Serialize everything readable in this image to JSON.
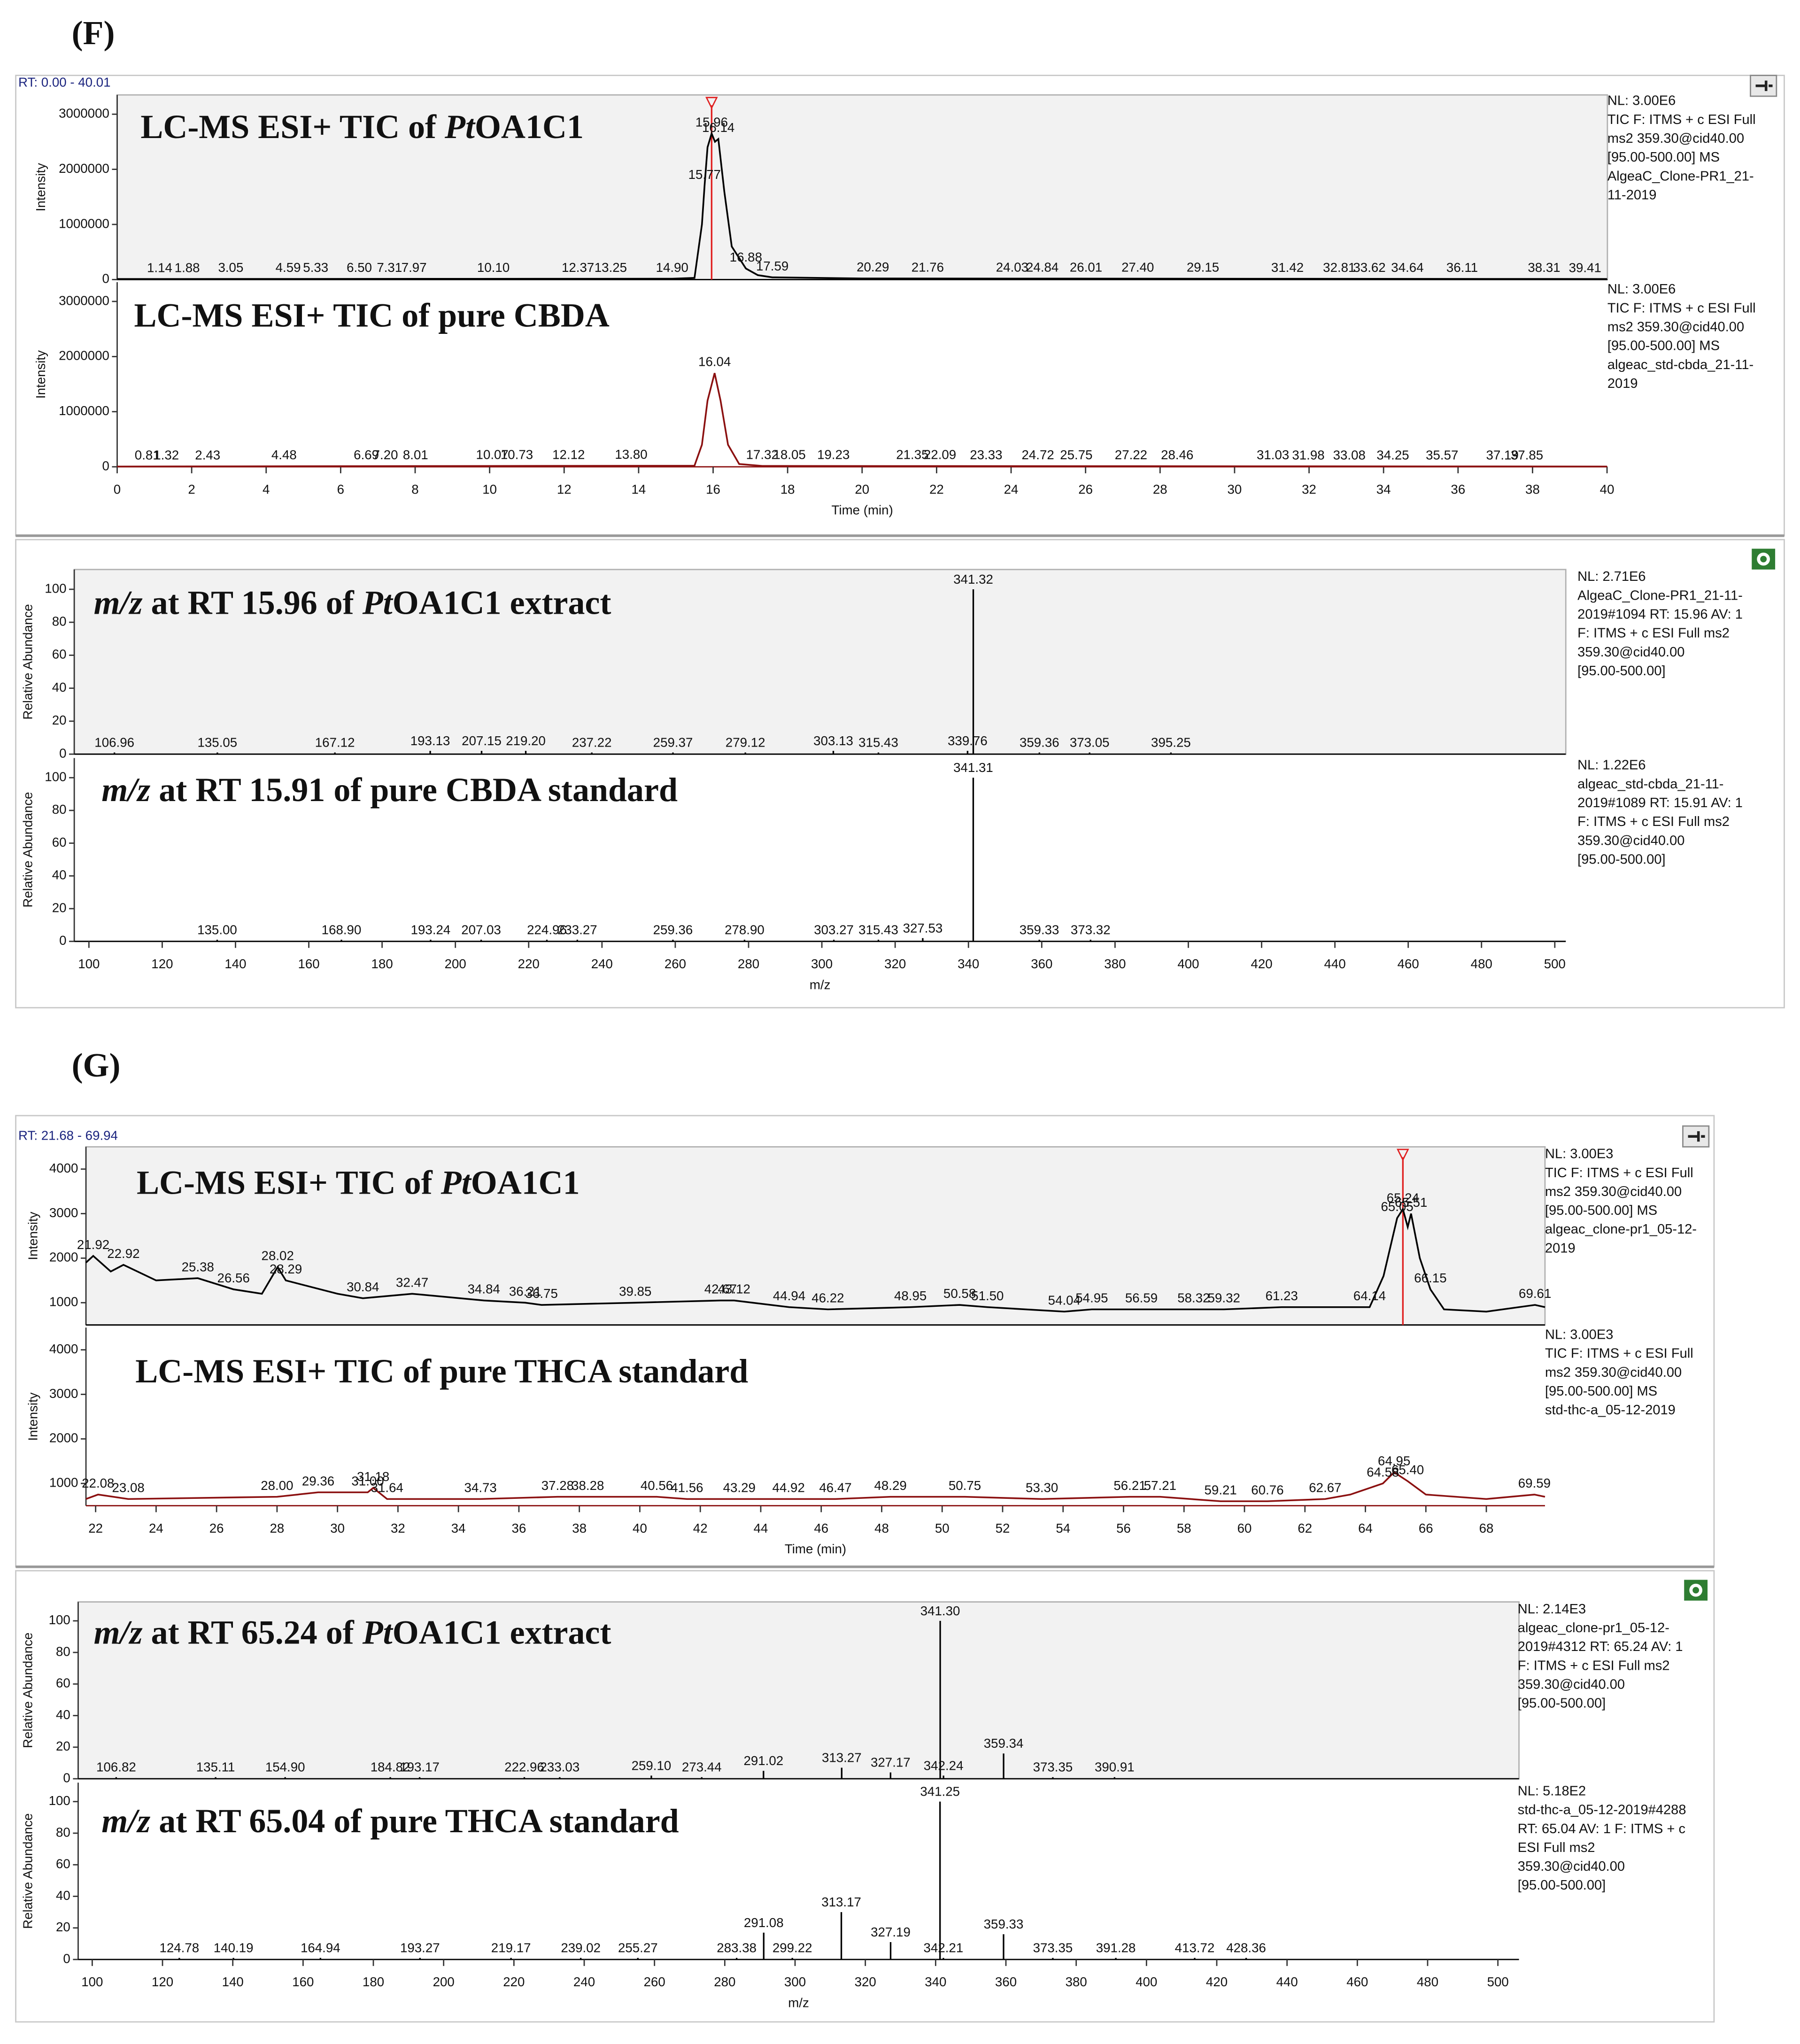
{
  "panel_labels": [
    "(F)",
    "(G)"
  ],
  "chart_data": [
    {
      "type": "line",
      "title_parts": [
        {
          "text": "LC-MS ESI+ TIC of "
        },
        {
          "text": "Pt",
          "italic": true
        },
        {
          "text": "OA1C1"
        }
      ],
      "rt_range": "RT: 0.00 - 40.01",
      "ylabel": "Intensity",
      "color": "#000000",
      "panel_fill": "#f2f2f2",
      "rt_marker": 15.96,
      "xlim": [
        0,
        40.01
      ],
      "ylim": [
        0,
        3350000
      ],
      "yticks": [
        0,
        1000000,
        2000000,
        3000000
      ],
      "x": [
        0,
        14.9,
        15.5,
        15.7,
        15.77,
        15.85,
        15.96,
        16.05,
        16.14,
        16.3,
        16.5,
        16.88,
        17.2,
        17.59,
        20,
        40
      ],
      "values": [
        10000,
        15000,
        30000,
        1000000,
        1700000,
        2400000,
        2650000,
        2500000,
        2550000,
        1600000,
        600000,
        200000,
        80000,
        40000,
        20000,
        10000
      ],
      "peaks": [
        1.14,
        1.88,
        3.05,
        4.59,
        5.33,
        {
          "value": 6.5,
          "label": "6.50"
        },
        7.31,
        7.97,
        {
          "value": 10.1,
          "label": "10.10"
        },
        12.37,
        13.25,
        {
          "value": 14.9,
          "label": "14.90"
        },
        15.77,
        15.96,
        16.14,
        16.88,
        17.59,
        20.29,
        21.76,
        24.03,
        24.84,
        26.01,
        {
          "value": 27.4,
          "label": "27.40"
        },
        29.15,
        31.42,
        32.81,
        33.62,
        34.64,
        36.11,
        38.31,
        39.41
      ],
      "info_color": "#000000",
      "info": [
        "NL: 3.00E6",
        "TIC F: ITMS + c ESI Full",
        "ms2 359.30@cid40.00",
        "[95.00-500.00] MS",
        "AlgeaC_Clone-PR1_21-",
        "11-2019"
      ]
    },
    {
      "type": "line",
      "title_parts": [
        {
          "text": "LC-MS ESI+ TIC of pure CBDA"
        }
      ],
      "ylabel": "Intensity",
      "xlabel": "Time (min)",
      "color": "#8b1010",
      "panel_fill": "#ffffff",
      "xlim": [
        0,
        40.01
      ],
      "ylim": [
        0,
        3350000
      ],
      "yticks": [
        0,
        1000000,
        2000000,
        3000000
      ],
      "xticks": [
        0,
        2,
        4,
        6,
        8,
        10,
        12,
        14,
        16,
        18,
        20,
        22,
        24,
        26,
        28,
        30,
        32,
        34,
        36,
        38,
        40
      ],
      "x": [
        0,
        15.5,
        15.7,
        15.85,
        16.04,
        16.2,
        16.4,
        16.7,
        17.32,
        40
      ],
      "values": [
        5000,
        20000,
        400000,
        1200000,
        1700000,
        1200000,
        400000,
        50000,
        15000,
        5000
      ],
      "peaks": [
        0.81,
        1.32,
        2.43,
        4.48,
        6.69,
        {
          "value": 7.2,
          "label": "7.20"
        },
        8.01,
        10.07,
        10.73,
        12.12,
        {
          "value": 13.8,
          "label": "13.80"
        },
        16.04,
        17.32,
        18.05,
        19.23,
        21.35,
        22.09,
        23.33,
        24.72,
        25.75,
        27.22,
        28.46,
        31.03,
        31.98,
        33.08,
        34.25,
        35.57,
        37.19,
        37.85
      ],
      "info_color": "#8b1010",
      "info": [
        "NL: 3.00E6",
        "TIC F: ITMS + c ESI Full",
        "ms2 359.30@cid40.00",
        "[95.00-500.00] MS",
        "algeac_std-cbda_21-11-",
        "2019"
      ]
    },
    {
      "type": "stick",
      "title_parts": [
        {
          "text": "m/z",
          "italic": true
        },
        {
          "text": " at RT 15.96 of "
        },
        {
          "text": "Pt",
          "italic": true
        },
        {
          "text": "OA1C1 extract"
        }
      ],
      "ylabel": "Relative Abundance",
      "color": "#000000",
      "panel_fill": "#f2f2f2",
      "xlim": [
        96,
        503
      ],
      "ylim": [
        0,
        112
      ],
      "yticks": [
        0,
        20,
        40,
        60,
        80,
        100
      ],
      "x": [
        106.96,
        135.05,
        167.12,
        193.13,
        207.15,
        {
          "value": 219.2,
          "label": "219.20"
        },
        237.22,
        259.37,
        279.12,
        303.13,
        315.43,
        339.76,
        341.32,
        359.36,
        373.05,
        395.25
      ],
      "values": [
        1,
        1,
        1,
        2,
        2,
        2,
        1,
        1,
        1,
        2,
        1,
        2,
        100,
        1,
        1,
        1
      ],
      "info_color": "#000000",
      "info": [
        "NL: 2.71E6",
        "AlgeaC_Clone-PR1_21-11-",
        "2019#1094  RT: 15.96  AV: 1",
        "F: ITMS + c ESI Full ms2",
        "359.30@cid40.00",
        "[95.00-500.00]"
      ]
    },
    {
      "type": "stick",
      "title_parts": [
        {
          "text": "m/z",
          "italic": true
        },
        {
          "text": " at RT 15.91 of pure CBDA standard"
        }
      ],
      "ylabel": "Relative Abundance",
      "xlabel": "m/z",
      "color": "#000000",
      "panel_fill": "#ffffff",
      "xlim": [
        96,
        503
      ],
      "ylim": [
        0,
        112
      ],
      "yticks": [
        0,
        20,
        40,
        60,
        80,
        100
      ],
      "xticks": [
        100,
        120,
        140,
        160,
        180,
        200,
        220,
        240,
        260,
        280,
        300,
        320,
        340,
        360,
        380,
        400,
        420,
        440,
        460,
        480,
        500
      ],
      "x": [
        {
          "value": 135,
          "label": "135.00"
        },
        {
          "value": 168.9,
          "label": "168.90"
        },
        193.24,
        207.03,
        224.96,
        233.27,
        259.36,
        {
          "value": 278.9,
          "label": "278.90"
        },
        303.27,
        315.43,
        327.53,
        341.31,
        359.33,
        373.32
      ],
      "values": [
        1,
        1,
        1,
        1,
        1,
        1,
        1,
        1,
        1,
        1,
        2,
        100,
        1,
        1
      ],
      "info_color": "#000000",
      "info": [
        "NL: 1.22E6",
        "algeac_std-cbda_21-11-",
        "2019#1089  RT: 15.91  AV: 1",
        "F: ITMS + c ESI Full ms2",
        "359.30@cid40.00",
        "[95.00-500.00]"
      ]
    },
    {
      "type": "line",
      "title_parts": [
        {
          "text": "LC-MS ESI+ TIC of "
        },
        {
          "text": "Pt",
          "italic": true
        },
        {
          "text": "OA1C1"
        }
      ],
      "rt_range": "RT: 21.68 - 69.94",
      "ylabel": "Intensity",
      "color": "#000000",
      "panel_fill": "#f2f2f2",
      "rt_marker": 65.24,
      "xlim": [
        21.68,
        69.94
      ],
      "ylim": [
        500,
        4500
      ],
      "yticks": [
        1000,
        2000,
        3000,
        4000
      ],
      "x": [
        21.68,
        21.92,
        22.5,
        22.92,
        24,
        25.38,
        26.56,
        27.5,
        28.02,
        28.29,
        30,
        30.84,
        32.47,
        34.84,
        36.21,
        36.75,
        39.85,
        42.67,
        43.12,
        44.94,
        46.22,
        48.95,
        50.58,
        51.5,
        54.04,
        54.95,
        56.59,
        58.32,
        59.32,
        61.23,
        64.14,
        64.6,
        65.05,
        65.24,
        65.4,
        65.51,
        65.8,
        66.15,
        66.6,
        68,
        69.61,
        69.94
      ],
      "values": [
        1900,
        2050,
        1700,
        1850,
        1500,
        1550,
        1300,
        1200,
        1800,
        1500,
        1200,
        1100,
        1200,
        1050,
        1000,
        950,
        1000,
        1050,
        1050,
        900,
        850,
        900,
        950,
        900,
        800,
        850,
        850,
        850,
        850,
        900,
        900,
        1600,
        2900,
        3100,
        2700,
        3000,
        2000,
        1300,
        850,
        800,
        950,
        900
      ],
      "peaks": [
        21.92,
        22.92,
        25.38,
        26.56,
        28.02,
        28.29,
        30.84,
        32.47,
        34.84,
        36.21,
        36.75,
        39.85,
        42.67,
        43.12,
        44.94,
        46.22,
        48.95,
        50.58,
        {
          "value": 51.5,
          "label": "51.50"
        },
        54.04,
        54.95,
        56.59,
        58.32,
        59.32,
        61.23,
        64.14,
        65.05,
        65.24,
        65.51,
        66.15,
        69.61
      ],
      "info_color": "#000000",
      "info": [
        "NL: 3.00E3",
        "TIC F: ITMS + c ESI Full",
        "ms2 359.30@cid40.00",
        "[95.00-500.00] MS",
        "algeac_clone-pr1_05-12-",
        "2019"
      ]
    },
    {
      "type": "line",
      "title_parts": [
        {
          "text": "LC-MS ESI+ TIC of pure THCA standard"
        }
      ],
      "ylabel": "Intensity",
      "xlabel": "Time (min)",
      "color": "#8b1010",
      "panel_fill": "#ffffff",
      "xlim": [
        21.68,
        69.94
      ],
      "ylim": [
        500,
        4500
      ],
      "yticks": [
        1000,
        2000,
        3000,
        4000
      ],
      "xticks": [
        22,
        24,
        26,
        28,
        30,
        32,
        34,
        36,
        38,
        40,
        42,
        44,
        46,
        48,
        50,
        52,
        54,
        56,
        58,
        60,
        62,
        64,
        66,
        68
      ],
      "x": [
        21.68,
        22.08,
        23.08,
        28,
        29.36,
        31,
        31.18,
        31.64,
        34.73,
        37.28,
        38.28,
        40.56,
        41.56,
        43.29,
        44.92,
        46.47,
        48.29,
        50.75,
        53.3,
        56.21,
        57.21,
        59.21,
        60.76,
        62.67,
        63.5,
        64.58,
        64.95,
        65.4,
        66,
        68,
        69.59,
        69.94
      ],
      "values": [
        650,
        750,
        650,
        700,
        800,
        800,
        900,
        650,
        650,
        700,
        700,
        700,
        650,
        650,
        650,
        650,
        700,
        700,
        650,
        700,
        700,
        600,
        600,
        650,
        750,
        1000,
        1250,
        1050,
        750,
        650,
        750,
        700
      ],
      "peaks": [
        22.08,
        23.08,
        {
          "value": 28,
          "label": "28.00"
        },
        29.36,
        {
          "value": 31,
          "label": "31.00"
        },
        31.18,
        31.64,
        34.73,
        37.28,
        38.28,
        40.56,
        41.56,
        43.29,
        44.92,
        46.47,
        48.29,
        50.75,
        {
          "value": 53.3,
          "label": "53.30"
        },
        56.21,
        57.21,
        59.21,
        60.76,
        62.67,
        64.58,
        64.95,
        {
          "value": 65.4,
          "label": "65.40"
        },
        69.59
      ],
      "info_color": "#8b1010",
      "info": [
        "NL: 3.00E3",
        "TIC F: ITMS + c ESI Full",
        "ms2 359.30@cid40.00",
        "[95.00-500.00] MS",
        "std-thc-a_05-12-2019"
      ]
    },
    {
      "type": "stick",
      "title_parts": [
        {
          "text": "m/z",
          "italic": true
        },
        {
          "text": " at RT 65.24 of "
        },
        {
          "text": "Pt",
          "italic": true
        },
        {
          "text": "OA1C1 extract"
        }
      ],
      "ylabel": "Relative Abundance",
      "color": "#000000",
      "panel_fill": "#f2f2f2",
      "xlim": [
        96,
        506
      ],
      "ylim": [
        0,
        112
      ],
      "yticks": [
        0,
        20,
        40,
        60,
        80,
        100
      ],
      "x": [
        106.82,
        135.11,
        {
          "value": 154.9,
          "label": "154.90"
        },
        184.82,
        193.17,
        222.96,
        233.03,
        {
          "value": 259.1,
          "label": "259.10"
        },
        273.44,
        291.02,
        313.27,
        327.17,
        {
          "value": 341.3,
          "label": "341.30"
        },
        342.24,
        359.34,
        373.35,
        390.91
      ],
      "values": [
        1,
        1,
        1,
        1,
        1,
        1,
        1,
        2,
        1,
        5,
        7,
        4,
        100,
        2,
        16,
        1,
        1
      ],
      "info_color": "#000000",
      "info": [
        "NL: 2.14E3",
        "algeac_clone-pr1_05-12-",
        "2019#4312  RT: 65.24  AV: 1",
        "F: ITMS + c ESI Full ms2",
        "359.30@cid40.00",
        "[95.00-500.00]"
      ]
    },
    {
      "type": "stick",
      "title_parts": [
        {
          "text": "m/z",
          "italic": true
        },
        {
          "text": " at RT 65.04 of pure THCA standard"
        }
      ],
      "ylabel": "Relative Abundance",
      "xlabel": "m/z",
      "color": "#000000",
      "panel_fill": "#ffffff",
      "xlim": [
        96,
        506
      ],
      "ylim": [
        0,
        112
      ],
      "yticks": [
        0,
        20,
        40,
        60,
        80,
        100
      ],
      "xticks": [
        100,
        120,
        140,
        160,
        180,
        200,
        220,
        240,
        260,
        280,
        300,
        320,
        340,
        360,
        380,
        400,
        420,
        440,
        460,
        480,
        500
      ],
      "x": [
        124.78,
        140.19,
        164.94,
        193.27,
        219.17,
        239.02,
        255.27,
        283.38,
        291.08,
        299.22,
        313.17,
        327.19,
        341.25,
        342.21,
        359.33,
        373.35,
        391.28,
        413.72,
        428.36
      ],
      "values": [
        1,
        1,
        1,
        1,
        1,
        1,
        1,
        1,
        17,
        1,
        30,
        11,
        100,
        1,
        16,
        1,
        1,
        1,
        1
      ],
      "info_color": "#000000",
      "info": [
        "NL: 5.18E2",
        "std-thc-a_05-12-2019#4288",
        "RT: 65.04  AV: 1  F: ITMS + c",
        "ESI Full ms2",
        "359.30@cid40.00",
        "[95.00-500.00]"
      ]
    }
  ]
}
